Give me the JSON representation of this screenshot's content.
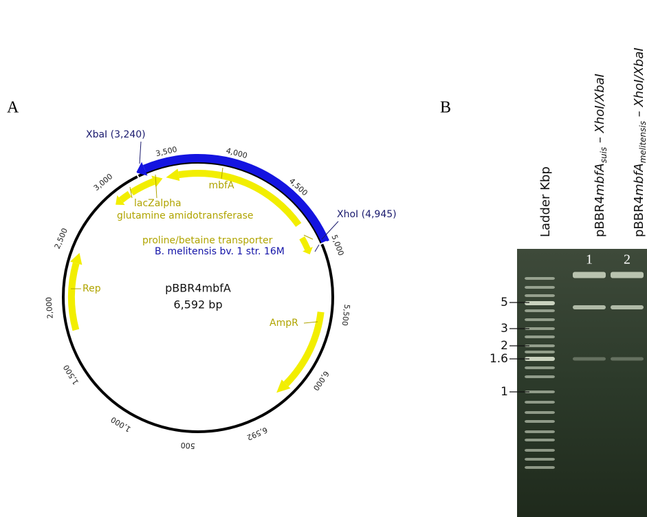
{
  "panels": {
    "a": "A",
    "b": "B"
  },
  "plasmid": {
    "name": "pBBR4mbfA",
    "size": "6,592 bp",
    "ticks": [
      {
        "value": 500,
        "label": "500"
      },
      {
        "value": 1000,
        "label": "1,000"
      },
      {
        "value": 1500,
        "label": "1,500"
      },
      {
        "value": 2000,
        "label": "2,000"
      },
      {
        "value": 2500,
        "label": "2,500"
      },
      {
        "value": 3000,
        "label": "3,000"
      },
      {
        "value": 3500,
        "label": "3,500"
      },
      {
        "value": 4000,
        "label": "4,000"
      },
      {
        "value": 4500,
        "label": "4,500"
      },
      {
        "value": 5000,
        "label": "5,000"
      },
      {
        "value": 5500,
        "label": "5,500"
      },
      {
        "value": 6000,
        "label": "6,000"
      },
      {
        "value": 6592,
        "label": "6,592"
      }
    ],
    "sites": [
      {
        "label": "XbaI (3,240)",
        "position": 3240
      },
      {
        "label": "XhoI (4,945)",
        "position": 4945
      }
    ],
    "features": {
      "mbfA": "mbfA",
      "lacZalpha": "lacZalpha",
      "glutamine": "glutamine amidotransferase",
      "transporter": "proline/betaine transporter",
      "insert": "B. melitensis bv. 1 str. 16M",
      "rep": "Rep",
      "ampr": "AmpR"
    }
  },
  "gel": {
    "ladder_header": "Ladder Kbp",
    "lanes": [
      {
        "number": 1,
        "prefix": "pBBR4",
        "gene": "mbfA",
        "strain": "suis",
        "digest": " – XhoI/XbaI"
      },
      {
        "number": 2,
        "prefix": "pBBR4",
        "gene": "mbfA",
        "strain": "melitensis",
        "digest": " – XhoI/XbaI"
      }
    ],
    "sizes": [
      5,
      3,
      2,
      1.6,
      1
    ]
  }
}
